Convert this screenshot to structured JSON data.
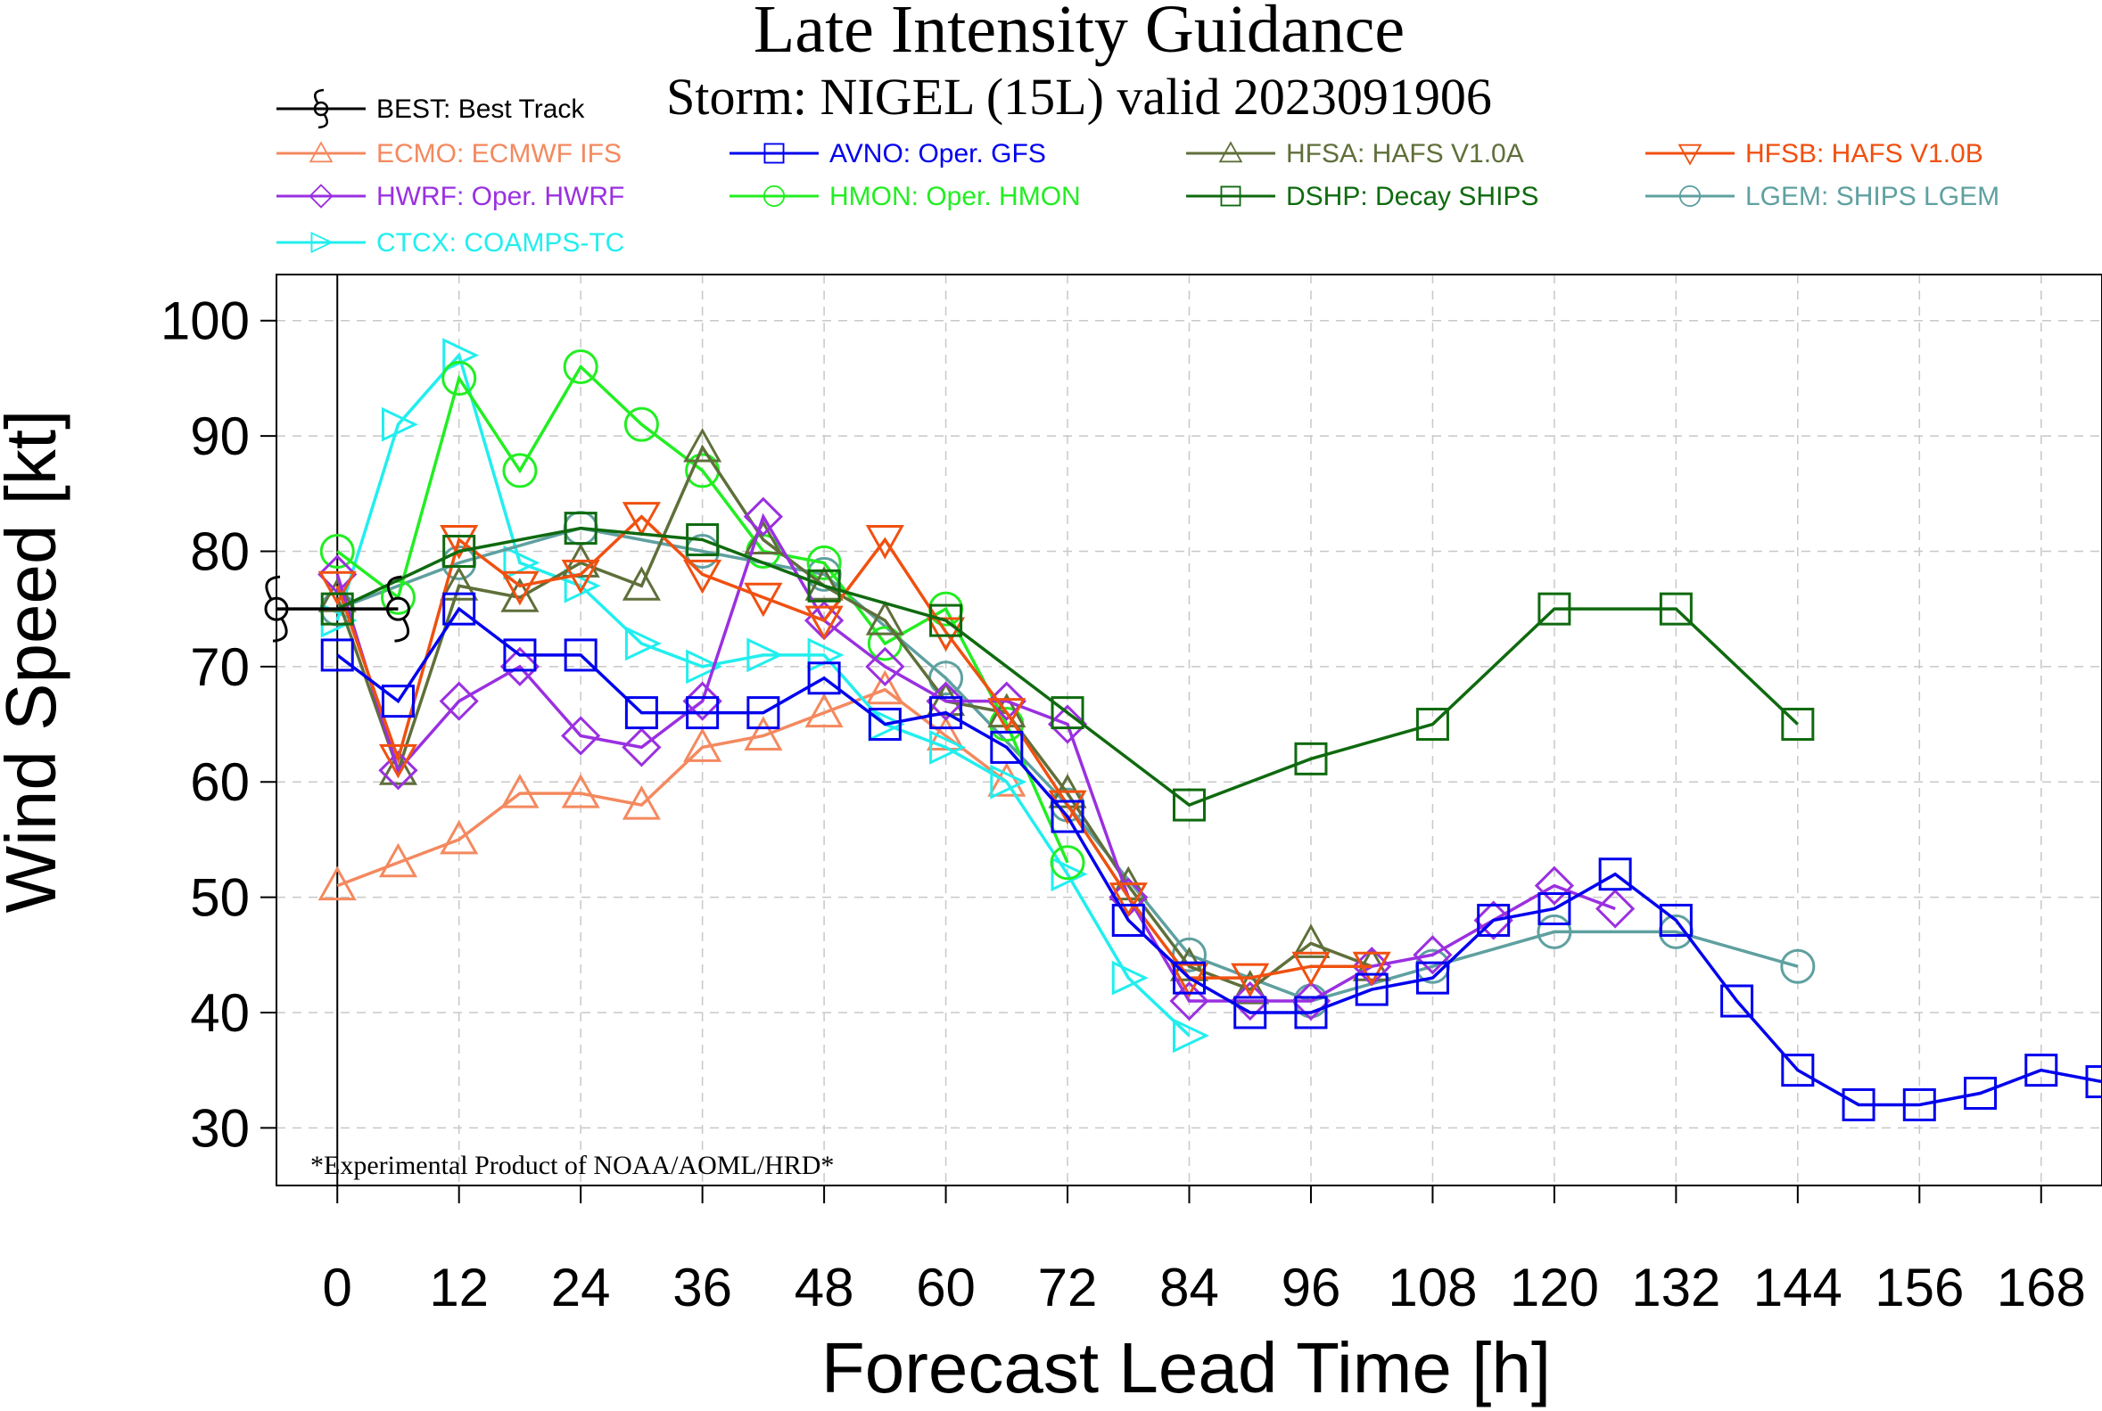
{
  "chart_data": {
    "type": "line",
    "title": "Late Intensity Guidance",
    "subtitle": "Storm: NIGEL (15L) valid 2023091906",
    "xlabel": "Forecast Lead Time [h]",
    "ylabel": "Wind Speed [kt]",
    "xlim": [
      -6,
      174
    ],
    "ylim": [
      25,
      104
    ],
    "xticks": [
      0,
      12,
      24,
      36,
      48,
      60,
      72,
      84,
      96,
      108,
      120,
      132,
      144,
      156,
      168
    ],
    "yticks": [
      30,
      40,
      50,
      60,
      70,
      80,
      90,
      100
    ],
    "grid": true,
    "legend_position": "top",
    "annotation": "*Experimental Product of NOAA/AOML/HRD*",
    "series": [
      {
        "name": "BEST: Best Track",
        "color": "#000000",
        "marker": "hurricane-symbol",
        "x": [
          -6,
          0,
          6
        ],
        "y": [
          75,
          75,
          75
        ]
      },
      {
        "name": "ECMO: ECMWF IFS",
        "color": "#f4895f",
        "marker": "triangle",
        "x": [
          0,
          6,
          12,
          18,
          24,
          30,
          36,
          42,
          48,
          54,
          60,
          66
        ],
        "y": [
          51,
          53,
          55,
          59,
          59,
          58,
          63,
          64,
          66,
          68,
          64,
          60
        ]
      },
      {
        "name": "AVNO: Oper. GFS",
        "color": "#0000ee",
        "marker": "square",
        "x": [
          0,
          6,
          12,
          18,
          24,
          30,
          36,
          42,
          48,
          54,
          60,
          66,
          72,
          78,
          84,
          90,
          96,
          102,
          108,
          114,
          120,
          126,
          132,
          138,
          144,
          150,
          156,
          162,
          168,
          174
        ],
        "y": [
          71,
          67,
          75,
          71,
          71,
          66,
          66,
          66,
          69,
          65,
          66,
          63,
          57,
          48,
          43,
          40,
          40,
          42,
          43,
          48,
          49,
          52,
          48,
          41,
          35,
          32,
          32,
          33,
          35,
          34
        ]
      },
      {
        "name": "HFSA: HAFS V1.0A",
        "color": "#5f6f3a",
        "marker": "triangle",
        "x": [
          0,
          6,
          12,
          18,
          24,
          30,
          36,
          42,
          48,
          54,
          60,
          66,
          72,
          78,
          84,
          90,
          96,
          102
        ],
        "y": [
          76,
          61,
          77,
          76,
          79,
          77,
          89,
          81,
          77,
          74,
          67,
          66,
          59,
          51,
          44,
          42,
          46,
          44
        ]
      },
      {
        "name": "HFSB: HAFS V1.0B",
        "color": "#f05010",
        "marker": "inverted-triangle",
        "x": [
          0,
          6,
          12,
          18,
          24,
          30,
          36,
          42,
          48,
          54,
          60,
          66,
          72,
          78,
          84,
          90,
          96,
          102
        ],
        "y": [
          77,
          62,
          81,
          77,
          78,
          83,
          78,
          76,
          74,
          81,
          73,
          66,
          58,
          50,
          43,
          43,
          44,
          44
        ]
      },
      {
        "name": "HWRF: Oper. HWRF",
        "color": "#9a30e0",
        "marker": "diamond",
        "x": [
          0,
          6,
          12,
          18,
          24,
          30,
          36,
          42,
          48,
          54,
          60,
          66,
          72,
          78,
          84,
          90,
          96,
          102,
          108,
          114,
          120,
          126
        ],
        "y": [
          78,
          61,
          67,
          70,
          64,
          63,
          67,
          83,
          74,
          70,
          67,
          67,
          65,
          50,
          41,
          41,
          41,
          44,
          45,
          48,
          51,
          49
        ]
      },
      {
        "name": "HMON: Oper. HMON",
        "color": "#22ee22",
        "marker": "circle",
        "x": [
          0,
          6,
          12,
          18,
          24,
          30,
          36,
          42,
          48,
          54,
          60,
          66,
          72
        ],
        "y": [
          80,
          76,
          95,
          87,
          96,
          91,
          87,
          80,
          79,
          72,
          75,
          65,
          53
        ]
      },
      {
        "name": "DSHP: Decay SHIPS",
        "color": "#0f6a0f",
        "marker": "square",
        "x": [
          0,
          12,
          24,
          36,
          48,
          60,
          72,
          84,
          96,
          108,
          120,
          132,
          144
        ],
        "y": [
          75,
          80,
          82,
          81,
          77,
          74,
          66,
          58,
          62,
          65,
          75,
          75,
          65
        ]
      },
      {
        "name": "LGEM: SHIPS LGEM",
        "color": "#5fa0a0",
        "marker": "circle",
        "x": [
          0,
          12,
          24,
          36,
          48,
          60,
          72,
          84,
          96,
          108,
          120,
          132,
          144
        ],
        "y": [
          75,
          79,
          82,
          80,
          78,
          69,
          58,
          45,
          41,
          44,
          47,
          47,
          44
        ]
      },
      {
        "name": "CTCX: COAMPS-TC",
        "color": "#22eeee",
        "marker": "triangle-right",
        "x": [
          0,
          6,
          12,
          18,
          24,
          30,
          36,
          42,
          48,
          54,
          60,
          66,
          72,
          78,
          84
        ],
        "y": [
          74,
          91,
          97,
          79,
          77,
          72,
          70,
          71,
          71,
          65,
          63,
          60,
          52,
          43,
          38
        ]
      }
    ]
  }
}
